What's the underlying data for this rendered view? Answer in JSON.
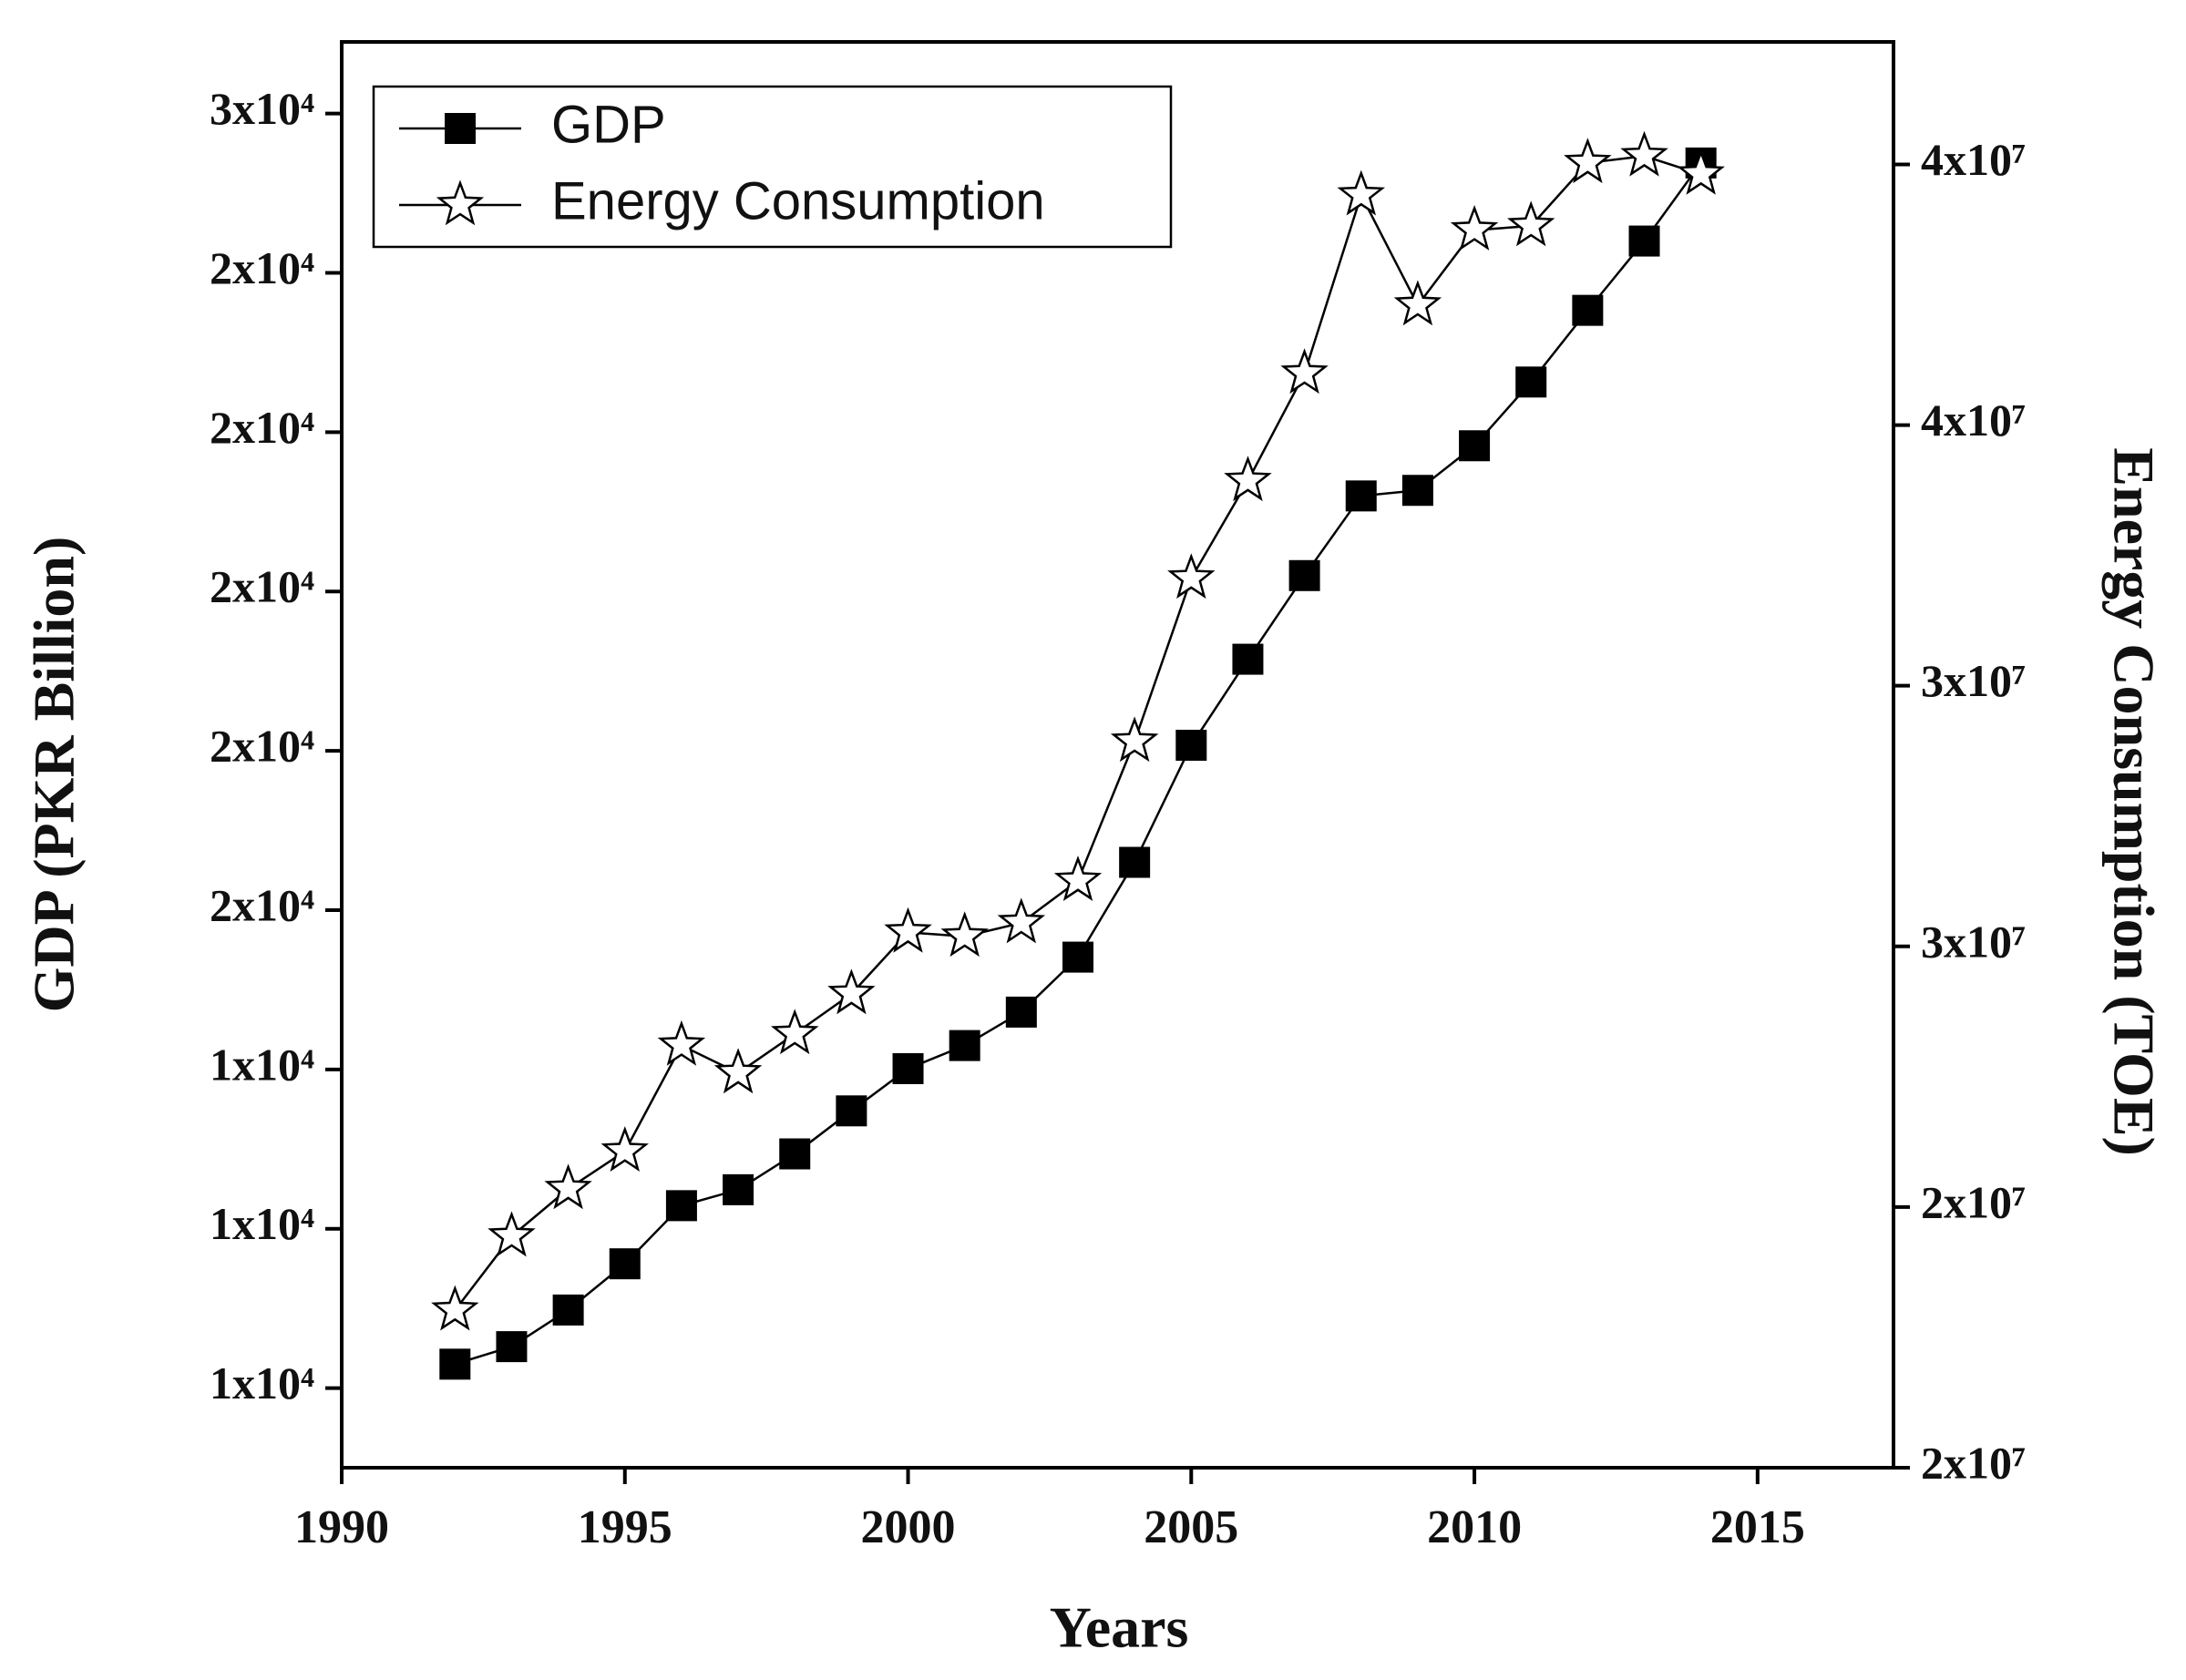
{
  "chart_data": {
    "type": "line",
    "x_label": "Years",
    "y_label": "GDP (PKR Billion)",
    "y2_label": "Energy Consumption (TOE)",
    "x": [
      1992,
      1993,
      1994,
      1995,
      1996,
      1997,
      1998,
      1999,
      2000,
      2001,
      2002,
      2003,
      2004,
      2005,
      2006,
      2007,
      2008,
      2009,
      2010,
      2011,
      2012,
      2013,
      2014
    ],
    "series": [
      {
        "name": "GDP",
        "color": "#000000",
        "marker": "square",
        "axis": "y",
        "values": [
          10300,
          10520,
          10980,
          11560,
          12290,
          12490,
          12940,
          13480,
          14010,
          14300,
          14720,
          15410,
          16600,
          18070,
          19150,
          20200,
          21200,
          21270,
          21830,
          22630,
          23530,
          24400,
          25380
        ]
      },
      {
        "name": "Energy Consumption",
        "color": "#000000",
        "marker": "star",
        "axis": "y2",
        "values": [
          18020000,
          19440000,
          20350000,
          21070000,
          23100000,
          22570000,
          23320000,
          24090000,
          25270000,
          25190000,
          25450000,
          26260000,
          28930000,
          32060000,
          33930000,
          35990000,
          39410000,
          37300000,
          38740000,
          38820000,
          40030000,
          40160000,
          39810000
        ]
      }
    ],
    "xlim": [
      1990,
      2017.4
    ],
    "xticks": [
      1990,
      1995,
      2000,
      2005,
      2010,
      2015
    ],
    "ylim": [
      9000,
      26900
    ],
    "yticks": [
      {
        "value": 10000,
        "label": "1x10⁴"
      },
      {
        "value": 12000,
        "label": "1x10⁴"
      },
      {
        "value": 14000,
        "label": "1x10⁴"
      },
      {
        "value": 16000,
        "label": "2x10⁴"
      },
      {
        "value": 18000,
        "label": "2x10⁴"
      },
      {
        "value": 20000,
        "label": "2x10⁴"
      },
      {
        "value": 22000,
        "label": "2x10⁴"
      },
      {
        "value": 24000,
        "label": "2x10⁴"
      },
      {
        "value": 26000,
        "label": "3x10⁴"
      }
    ],
    "y2lim": [
      15000000,
      42350000
    ],
    "y2ticks": [
      {
        "value": 15000000,
        "label": "2x10⁷"
      },
      {
        "value": 20000000,
        "label": "2x10⁷"
      },
      {
        "value": 25000000,
        "label": "3x10⁷"
      },
      {
        "value": 30000000,
        "label": "3x10⁷"
      },
      {
        "value": 35000000,
        "label": "4x10⁷"
      },
      {
        "value": 40000000,
        "label": "4x10⁷"
      }
    ],
    "legend": "upper left",
    "grid": false
  }
}
